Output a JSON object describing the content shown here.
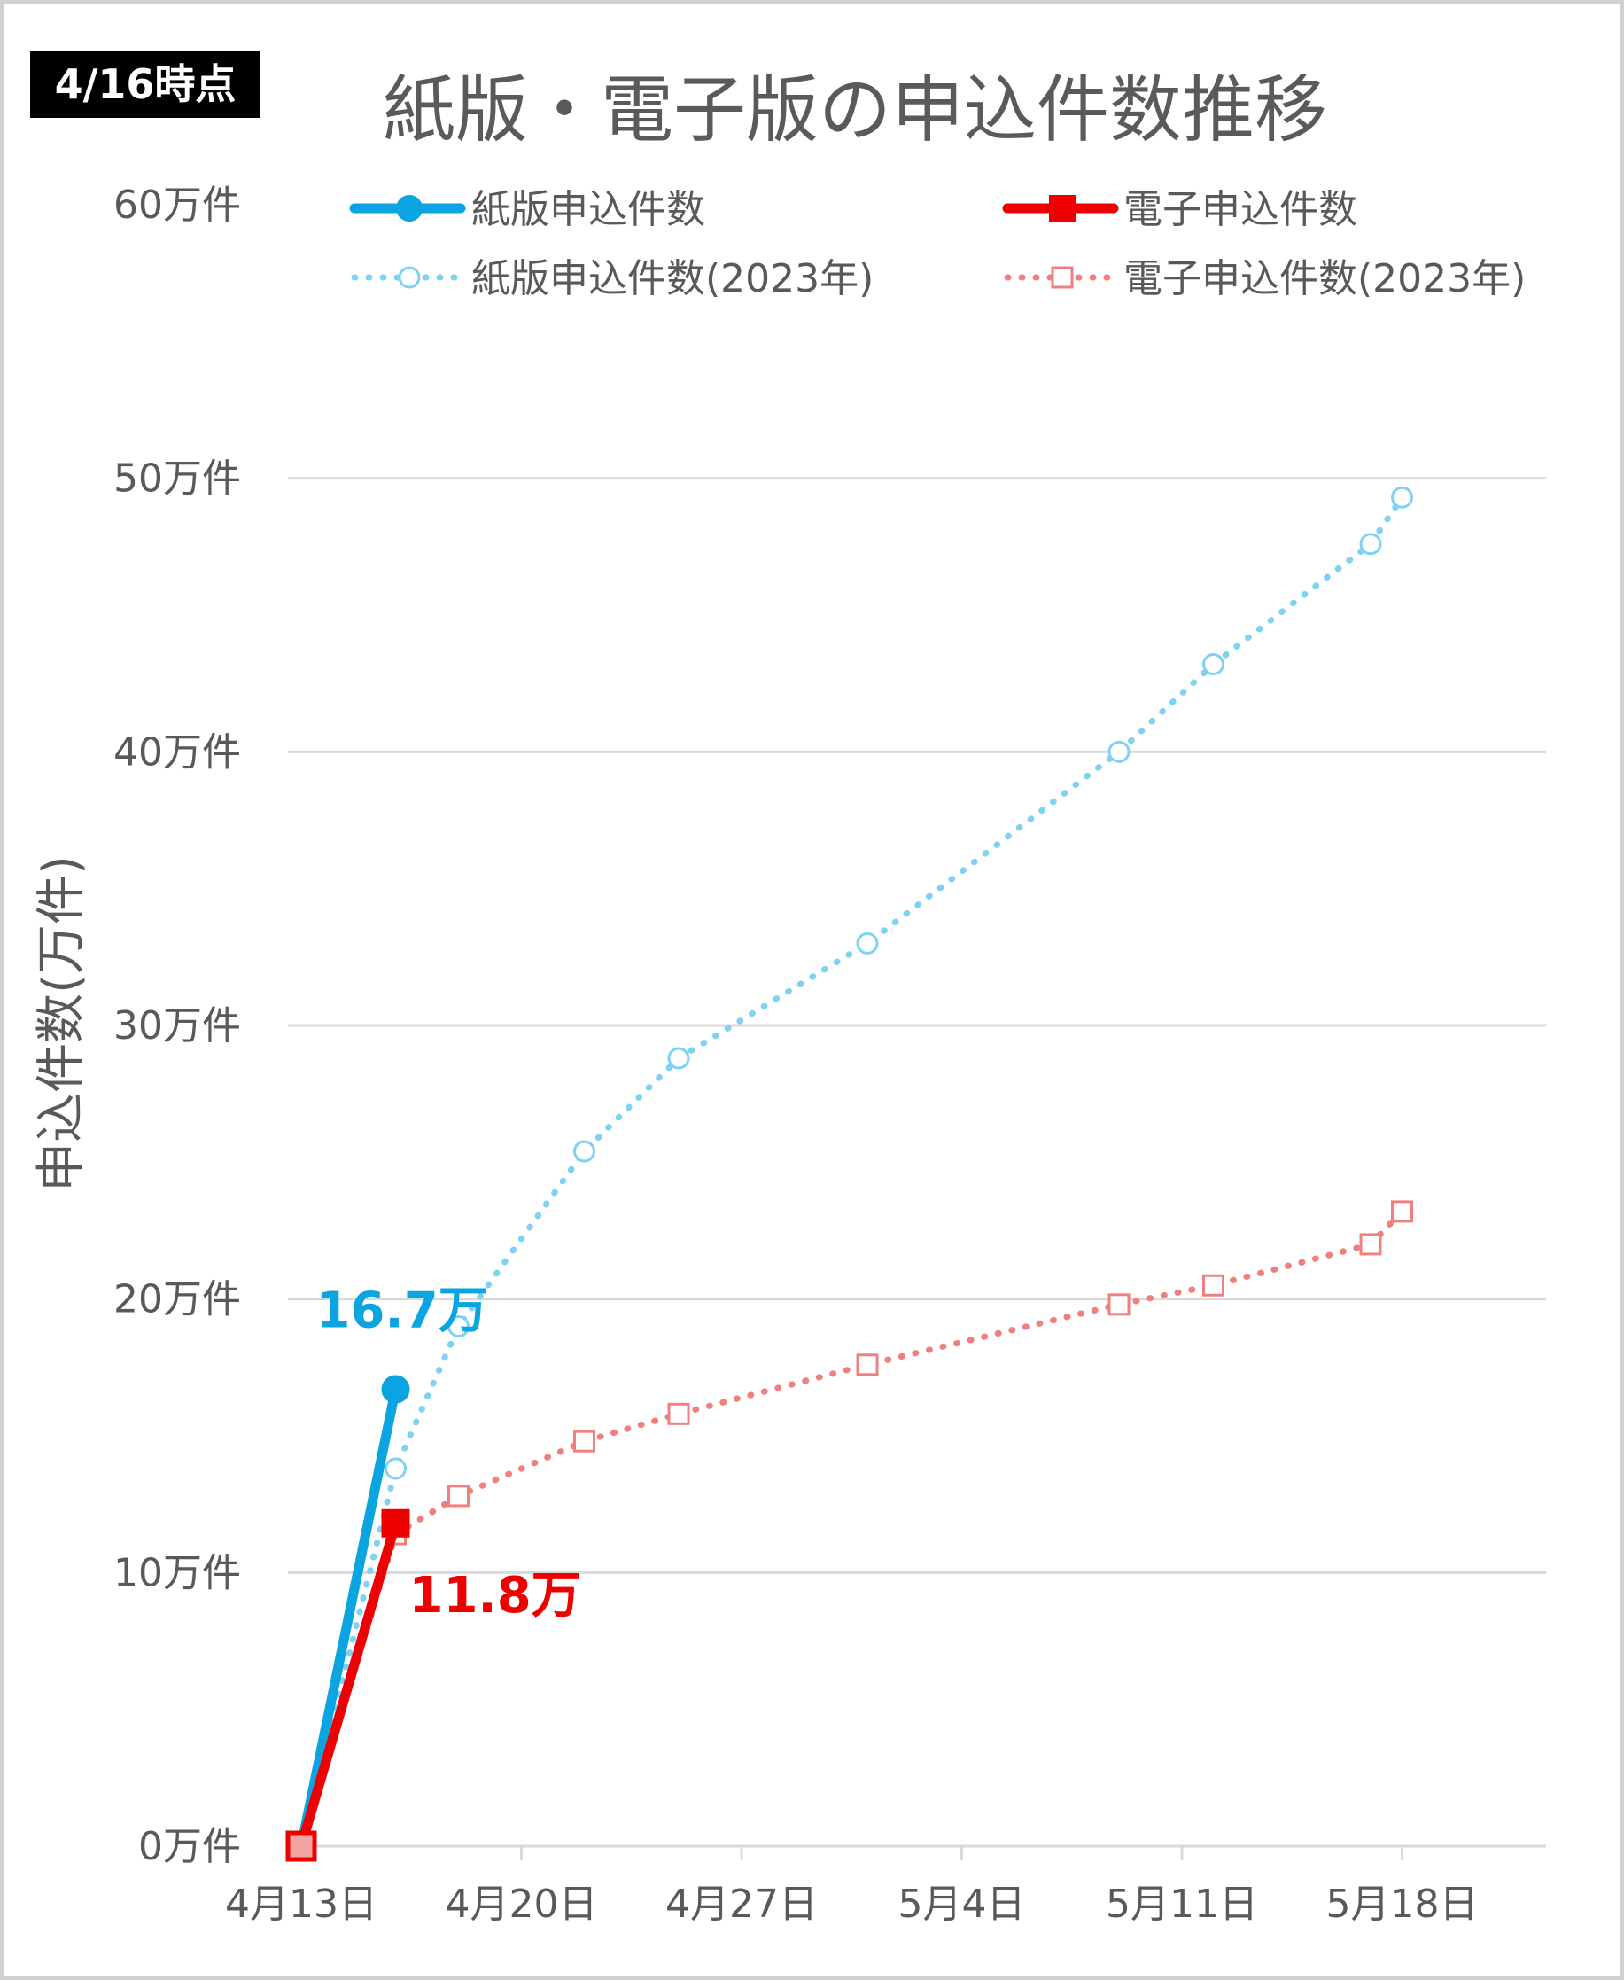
{
  "badge": "4/16時点",
  "chart_data": {
    "type": "line",
    "title": "紙版・電子版の申込件数推移",
    "ylabel": "申込件数(万件)",
    "xlabel": "",
    "ylim": [
      0,
      60
    ],
    "y_tick_labels": [
      "0万件",
      "10万件",
      "20万件",
      "30万件",
      "40万件",
      "50万件",
      "60万件"
    ],
    "y_tick_values": [
      0,
      10,
      20,
      30,
      40,
      50,
      60
    ],
    "x_tick_labels": [
      "4月13日",
      "4月20日",
      "4月27日",
      "5月4日",
      "5月11日",
      "5月18日"
    ],
    "x_tick_values": [
      "2024-04-13",
      "2024-04-20",
      "2024-04-27",
      "2024-05-04",
      "2024-05-11",
      "2024-05-18"
    ],
    "xlim": [
      "2024-04-13",
      "2024-05-23"
    ],
    "grid": true,
    "legend_position": "top",
    "series": [
      {
        "name": "紙版申込件数",
        "color": "#0aa5e0",
        "style": "solid",
        "marker": "circle-filled",
        "x": [
          "2024-04-13",
          "2024-04-16"
        ],
        "y": [
          0,
          16.7
        ]
      },
      {
        "name": "電子申込件数",
        "color": "#ee0000",
        "style": "solid",
        "marker": "square-filled",
        "x": [
          "2024-04-13",
          "2024-04-16"
        ],
        "y": [
          0,
          11.8
        ]
      },
      {
        "name": "紙版申込件数(2023年)",
        "color": "#7fd2f2",
        "style": "dotted",
        "marker": "circle-open",
        "x": [
          "2024-04-13",
          "2024-04-16",
          "2024-04-18",
          "2024-04-22",
          "2024-04-25",
          "2024-05-01",
          "2024-05-09",
          "2024-05-12",
          "2024-05-17",
          "2024-05-18"
        ],
        "y": [
          0,
          13.8,
          19.0,
          25.4,
          28.8,
          33.0,
          40.0,
          43.2,
          47.6,
          49.3
        ]
      },
      {
        "name": "電子申込件数(2023年)",
        "color": "#f08080",
        "style": "dotted",
        "marker": "square-open",
        "x": [
          "2024-04-13",
          "2024-04-16",
          "2024-04-18",
          "2024-04-22",
          "2024-04-25",
          "2024-05-01",
          "2024-05-09",
          "2024-05-12",
          "2024-05-17",
          "2024-05-18"
        ],
        "y": [
          0,
          11.4,
          12.8,
          14.8,
          15.8,
          17.6,
          19.8,
          20.5,
          22.0,
          23.2
        ]
      }
    ],
    "annotations": [
      {
        "text": "16.7万",
        "series": 0,
        "point": 1,
        "color": "#0aa5e0"
      },
      {
        "text": "11.8万",
        "series": 1,
        "point": 1,
        "color": "#ee0000"
      }
    ]
  }
}
